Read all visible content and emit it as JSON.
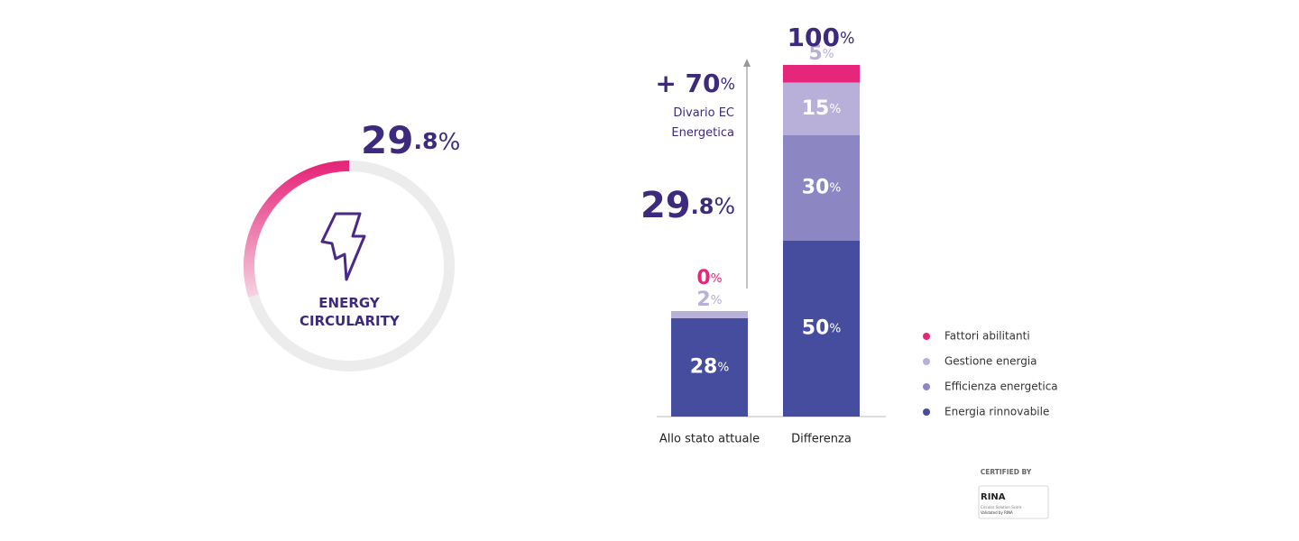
{
  "chart_data": [
    {
      "type": "gauge",
      "value": 29.8,
      "value_label": "29.8%",
      "label": "ENERGY CIRCULARITY",
      "ylim": [
        0,
        100
      ],
      "color": "#e6267a",
      "track_color": "#ececec"
    },
    {
      "type": "stacked_bar",
      "categories": [
        "Allo stato attuale",
        "Differenza"
      ],
      "series": [
        {
          "name": "Energia rinnovabile",
          "color": "#464d9e",
          "values": [
            28,
            50
          ],
          "value_labels": [
            "28%",
            "50%"
          ]
        },
        {
          "name": "Efficienza energetica",
          "color": "#8c87c2",
          "values": [
            null,
            30
          ],
          "value_labels": [
            null,
            "30%"
          ]
        },
        {
          "name": "Gestione energia",
          "color": "#b8b0d9",
          "values": [
            2,
            15
          ],
          "value_labels": [
            "2%",
            "15%"
          ]
        },
        {
          "name": "Fattori abilitanti",
          "color": "#e6267a",
          "values": [
            0,
            5
          ],
          "value_labels": [
            "0%",
            "5%"
          ]
        }
      ],
      "ylim": [
        0,
        100
      ],
      "legend": "right",
      "annotations": {
        "total": "100%",
        "gap": "+ 70%",
        "gap_caption": "Divario EC Energetica",
        "current": "29.8%"
      }
    }
  ],
  "badge": {
    "heading": "CERTIFIED BY",
    "brand": "RINA",
    "line1": "Circular Solution Score",
    "line2": "Validated by RINA"
  }
}
